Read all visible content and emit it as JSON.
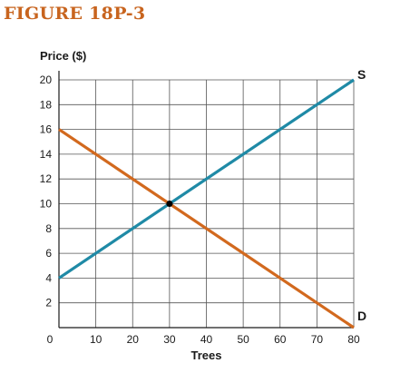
{
  "figure": {
    "title": "FIGURE 18P-3",
    "title_color": "#c8641e"
  },
  "chart_data": {
    "type": "line",
    "title": "",
    "xlabel": "Trees",
    "ylabel": "Price ($)",
    "xlim": [
      0,
      80
    ],
    "ylim": [
      0,
      20
    ],
    "x_ticks": [
      0,
      10,
      20,
      30,
      40,
      50,
      60,
      70,
      80
    ],
    "y_ticks": [
      2,
      4,
      6,
      8,
      10,
      12,
      14,
      16,
      18,
      20
    ],
    "origin_label": "0",
    "grid": true,
    "series": [
      {
        "name": "S",
        "color": "#1f8aa6",
        "points": [
          [
            0,
            4
          ],
          [
            80,
            20
          ]
        ]
      },
      {
        "name": "D",
        "color": "#d2691e",
        "points": [
          [
            0,
            16
          ],
          [
            80,
            0
          ]
        ]
      }
    ],
    "equilibrium": {
      "x": 30,
      "y": 10,
      "color": "#000000"
    }
  }
}
